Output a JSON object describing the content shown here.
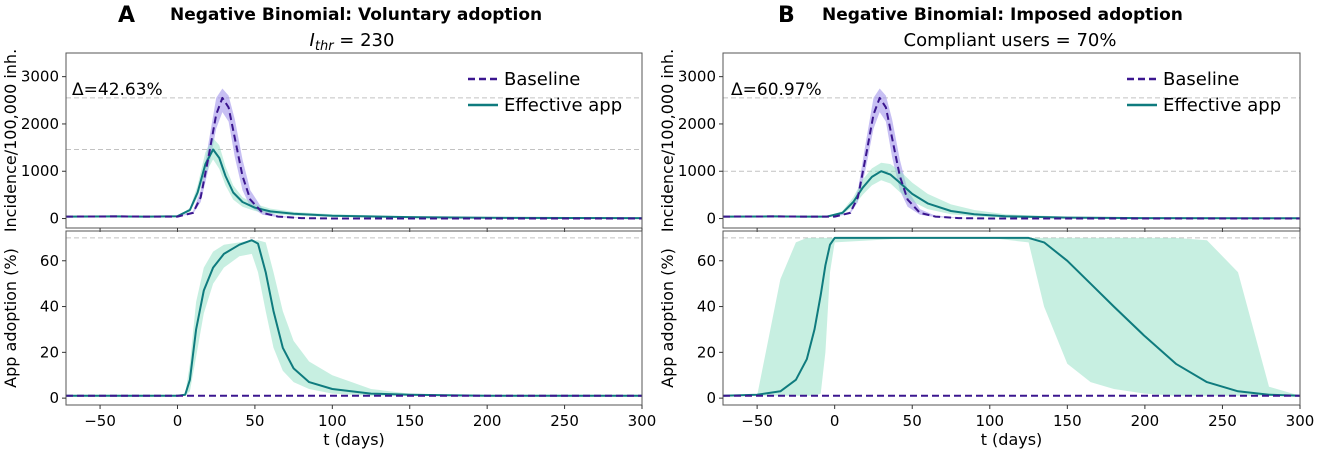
{
  "colors": {
    "baseline": "#3b168f",
    "effective": "#0f7b7e",
    "baseline_band": "#a99cec",
    "effective_band": "#8fe0c3",
    "ref_line": "#c2c2c2"
  },
  "legend": {
    "baseline": "Baseline",
    "effective": "Effective app"
  },
  "panels": [
    {
      "letter": "A",
      "title": "Negative Binomial: Voluntary adoption",
      "subtitle_main": "I",
      "subtitle_sub": "thr",
      "subtitle_rest": " = 230",
      "delta_label": "Δ=42.63%"
    },
    {
      "letter": "B",
      "title": "Negative Binomial: Imposed adoption",
      "subtitle_main": "Compliant users = 70%",
      "subtitle_sub": "",
      "subtitle_rest": "",
      "delta_label": "Δ=60.97%"
    }
  ],
  "chart_data": [
    {
      "id": "A-incidence",
      "type": "line",
      "title": "Negative Binomial: Voluntary adoption",
      "xlabel": "",
      "ylabel": "Incidence/100,000 inh.",
      "xlim": [
        -72,
        300
      ],
      "ylim": [
        -200,
        3500
      ],
      "xticks": [
        -50,
        0,
        50,
        100,
        150,
        200,
        250,
        300
      ],
      "yticks": [
        0,
        1000,
        2000,
        3000
      ],
      "hlines": [
        2550,
        1460
      ],
      "series": [
        {
          "name": "Baseline",
          "style": "dashed",
          "x": [
            -72,
            -40,
            -20,
            0,
            10,
            15,
            20,
            25,
            29,
            33,
            37,
            42,
            47,
            55,
            65,
            80,
            100,
            150,
            300
          ],
          "y": [
            40,
            45,
            40,
            40,
            120,
            450,
            1300,
            2200,
            2550,
            2350,
            1700,
            900,
            400,
            120,
            40,
            10,
            0,
            0,
            0
          ],
          "lo": [
            40,
            45,
            40,
            40,
            100,
            350,
            1050,
            1900,
            2250,
            2050,
            1300,
            600,
            250,
            80,
            30,
            10,
            0,
            0,
            0
          ],
          "hi": [
            40,
            45,
            40,
            40,
            150,
            600,
            1600,
            2550,
            2750,
            2600,
            2100,
            1250,
            600,
            200,
            60,
            15,
            0,
            0,
            0
          ]
        },
        {
          "name": "Effective app",
          "style": "solid",
          "x": [
            -72,
            -40,
            -20,
            0,
            8,
            13,
            18,
            23,
            27,
            31,
            36,
            42,
            50,
            60,
            75,
            100,
            150,
            200,
            300
          ],
          "y": [
            40,
            45,
            40,
            50,
            180,
            550,
            1150,
            1460,
            1280,
            900,
            550,
            350,
            230,
            150,
            100,
            60,
            30,
            15,
            10
          ],
          "lo": [
            40,
            45,
            40,
            45,
            140,
            450,
            950,
            1250,
            1050,
            700,
            400,
            250,
            160,
            100,
            60,
            35,
            15,
            5,
            0
          ],
          "hi": [
            40,
            45,
            40,
            55,
            220,
            700,
            1400,
            1700,
            1550,
            1100,
            700,
            450,
            310,
            210,
            140,
            90,
            45,
            20,
            10
          ]
        }
      ]
    },
    {
      "id": "A-adoption",
      "type": "line",
      "xlabel": "t (days)",
      "ylabel": "App adoption (%)",
      "xlim": [
        -72,
        300
      ],
      "ylim": [
        -3,
        73
      ],
      "xticks": [
        -50,
        0,
        50,
        100,
        150,
        200,
        250,
        300
      ],
      "yticks": [
        0,
        20,
        40,
        60
      ],
      "hlines": [
        70
      ],
      "series": [
        {
          "name": "Baseline",
          "style": "dashed",
          "x": [
            -72,
            300
          ],
          "y": [
            1,
            1
          ],
          "lo": [
            1,
            1
          ],
          "hi": [
            1,
            1
          ]
        },
        {
          "name": "Effective app",
          "style": "solid",
          "x": [
            -72,
            0,
            5,
            8,
            12,
            17,
            23,
            30,
            40,
            48,
            52,
            57,
            62,
            68,
            75,
            85,
            100,
            125,
            150,
            200,
            300
          ],
          "y": [
            1,
            1,
            1.5,
            8,
            30,
            47,
            57,
            63,
            67,
            69,
            67.5,
            55,
            38,
            22,
            13,
            7,
            4,
            2,
            1.5,
            1,
            1
          ],
          "lo": [
            1,
            1,
            1,
            3,
            18,
            37,
            50,
            57,
            62,
            63,
            55,
            38,
            22,
            12,
            7,
            4,
            2,
            1,
            1,
            1,
            1
          ],
          "hi": [
            1,
            1,
            2,
            15,
            42,
            57,
            64,
            67,
            68,
            69,
            69,
            68,
            55,
            38,
            25,
            16,
            10,
            4,
            2,
            1,
            1
          ]
        }
      ]
    },
    {
      "id": "B-incidence",
      "type": "line",
      "title": "Negative Binomial: Imposed adoption",
      "xlabel": "",
      "ylabel": "Incidence/100,000 inh.",
      "xlim": [
        -72,
        300
      ],
      "ylim": [
        -200,
        3500
      ],
      "xticks": [
        -50,
        0,
        50,
        100,
        150,
        200,
        250,
        300
      ],
      "yticks": [
        0,
        1000,
        2000,
        3000
      ],
      "hlines": [
        2550,
        1000
      ],
      "series": [
        {
          "name": "Baseline",
          "style": "dashed",
          "x": [
            -72,
            -40,
            -20,
            0,
            10,
            15,
            20,
            25,
            29,
            33,
            37,
            42,
            47,
            55,
            65,
            80,
            100,
            150,
            300
          ],
          "y": [
            40,
            45,
            40,
            40,
            120,
            450,
            1300,
            2200,
            2550,
            2350,
            1700,
            900,
            400,
            120,
            40,
            10,
            0,
            0,
            0
          ],
          "lo": [
            40,
            45,
            40,
            40,
            100,
            350,
            1050,
            1900,
            2250,
            2050,
            1300,
            600,
            250,
            80,
            30,
            10,
            0,
            0,
            0
          ],
          "hi": [
            40,
            45,
            40,
            40,
            150,
            600,
            1600,
            2550,
            2750,
            2600,
            2100,
            1250,
            600,
            200,
            60,
            15,
            0,
            0,
            0
          ]
        },
        {
          "name": "Effective app",
          "style": "solid",
          "x": [
            -72,
            -40,
            -20,
            -5,
            5,
            12,
            18,
            24,
            30,
            36,
            42,
            50,
            60,
            75,
            90,
            110,
            150,
            200,
            300
          ],
          "y": [
            40,
            45,
            40,
            40,
            120,
            350,
            650,
            880,
            1000,
            930,
            760,
            520,
            320,
            160,
            90,
            50,
            20,
            10,
            5
          ],
          "lo": [
            40,
            45,
            40,
            35,
            90,
            260,
            500,
            700,
            810,
            740,
            560,
            360,
            200,
            90,
            45,
            20,
            8,
            3,
            0
          ],
          "hi": [
            40,
            45,
            40,
            45,
            160,
            450,
            820,
            1060,
            1180,
            1150,
            1010,
            760,
            520,
            300,
            180,
            90,
            40,
            20,
            10
          ]
        }
      ]
    },
    {
      "id": "B-adoption",
      "type": "line",
      "xlabel": "t (days)",
      "ylabel": "App adoption (%)",
      "xlim": [
        -72,
        300
      ],
      "ylim": [
        -3,
        73
      ],
      "xticks": [
        -50,
        0,
        50,
        100,
        150,
        200,
        250,
        300
      ],
      "yticks": [
        0,
        20,
        40,
        60
      ],
      "hlines": [
        70
      ],
      "series": [
        {
          "name": "Baseline",
          "style": "dashed",
          "x": [
            -72,
            300
          ],
          "y": [
            1,
            1
          ],
          "lo": [
            1,
            1
          ],
          "hi": [
            1,
            1
          ]
        },
        {
          "name": "Effective app",
          "style": "solid",
          "x": [
            -72,
            -50,
            -35,
            -25,
            -18,
            -13,
            -9,
            -6,
            -3,
            0,
            50,
            100,
            125,
            135,
            150,
            165,
            180,
            200,
            220,
            240,
            260,
            280,
            300
          ],
          "y": [
            1,
            1.5,
            3,
            8,
            17,
            30,
            45,
            58,
            67,
            70,
            70,
            70,
            70,
            68,
            60,
            50,
            40,
            27,
            15,
            7,
            3,
            1.5,
            1
          ],
          "lo": [
            1,
            1,
            1,
            1,
            1,
            1,
            2,
            20,
            55,
            68,
            70,
            70,
            68,
            40,
            15,
            7,
            4,
            2,
            1,
            1,
            1,
            1,
            1
          ],
          "hi": [
            1,
            1,
            52,
            68,
            70,
            70,
            70,
            70,
            70,
            70,
            70,
            70,
            70,
            70,
            70,
            70,
            70,
            70,
            70,
            69,
            55,
            5,
            1
          ]
        }
      ]
    }
  ]
}
